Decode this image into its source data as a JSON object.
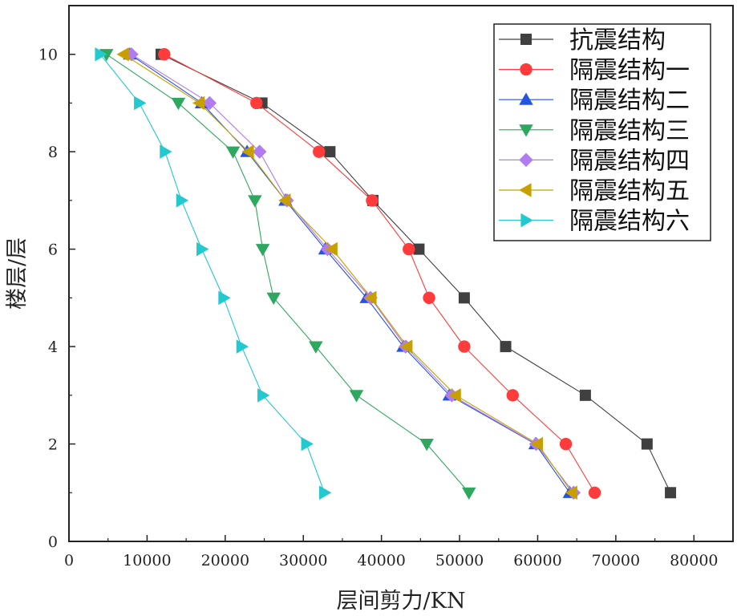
{
  "chart_data": {
    "type": "line",
    "title": "",
    "xlabel": "层间剪力/KN",
    "ylabel": "楼层/层",
    "xlim": [
      0,
      85000
    ],
    "ylim": [
      0,
      11
    ],
    "xticks": [
      0,
      10000,
      20000,
      30000,
      40000,
      50000,
      60000,
      70000,
      80000
    ],
    "xtick_labels": [
      "0",
      "10000",
      "20000",
      "30000",
      "40000",
      "50000",
      "60000",
      "70000",
      "80000"
    ],
    "yticks": [
      0,
      2,
      4,
      6,
      8,
      10
    ],
    "ytick_labels": [
      "0",
      "2",
      "4",
      "6",
      "8",
      "10"
    ],
    "grid": false,
    "legend_position": "top-right",
    "y": [
      10,
      9,
      8,
      7,
      6,
      5,
      4,
      3,
      2,
      1
    ],
    "series": [
      {
        "name": "抗震结构",
        "color": "#404040",
        "marker": "square",
        "x": [
          11800,
          24700,
          33400,
          38900,
          44800,
          50600,
          55900,
          66100,
          74000,
          77000
        ]
      },
      {
        "name": "隔震结构一",
        "color": "#ff3b3b",
        "marker": "circle",
        "x": [
          12200,
          24000,
          32000,
          38800,
          43500,
          46100,
          50600,
          56800,
          63600,
          67300
        ]
      },
      {
        "name": "隔震结构二",
        "color": "#2554e0",
        "marker": "triangle-up",
        "x": [
          7800,
          17000,
          22800,
          27700,
          32800,
          38100,
          42800,
          48700,
          59700,
          64100
        ]
      },
      {
        "name": "隔震结构三",
        "color": "#2ea85e",
        "marker": "triangle-down",
        "x": [
          4800,
          14000,
          21000,
          23800,
          24800,
          26200,
          31600,
          36800,
          45800,
          51200
        ]
      },
      {
        "name": "隔震结构四",
        "color": "#b07cf0",
        "marker": "diamond",
        "x": [
          8000,
          18000,
          24400,
          27900,
          33100,
          38600,
          43100,
          49000,
          59800,
          64600
        ]
      },
      {
        "name": "隔震结构五",
        "color": "#c7a000",
        "marker": "triangle-left",
        "x": [
          7000,
          16700,
          23000,
          27700,
          33700,
          38700,
          43300,
          49500,
          60000,
          64400
        ]
      },
      {
        "name": "隔震结构六",
        "color": "#22c9cf",
        "marker": "triangle-right",
        "x": [
          4000,
          9000,
          12300,
          14400,
          17000,
          19800,
          22100,
          24800,
          30400,
          32700
        ]
      }
    ]
  }
}
